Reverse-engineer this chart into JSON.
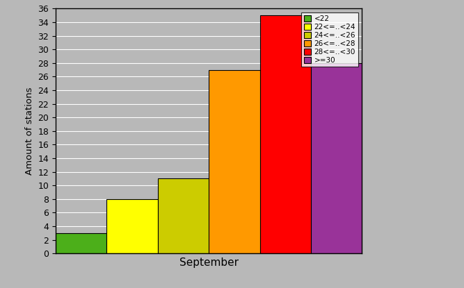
{
  "categories": [
    "<22",
    "22<=..<24",
    "24<=..<26",
    "26<=..<28",
    "28<=..<30",
    ">=30"
  ],
  "values": [
    3,
    8,
    11,
    27,
    35,
    28
  ],
  "colors": [
    "#4caf1a",
    "#ffff00",
    "#cccc00",
    "#ff9900",
    "#ff0000",
    "#993399"
  ],
  "xlabel": "September",
  "ylabel": "Amount of stations",
  "ylim": [
    0,
    36
  ],
  "yticks": [
    0,
    2,
    4,
    6,
    8,
    10,
    12,
    14,
    16,
    18,
    20,
    22,
    24,
    26,
    28,
    30,
    32,
    34,
    36
  ],
  "background_color": "#b8b8b8",
  "legend_labels": [
    "<22",
    "22<=..<24",
    "24<=..<26",
    "26<=..<28",
    "28<=..<30",
    ">=30"
  ]
}
